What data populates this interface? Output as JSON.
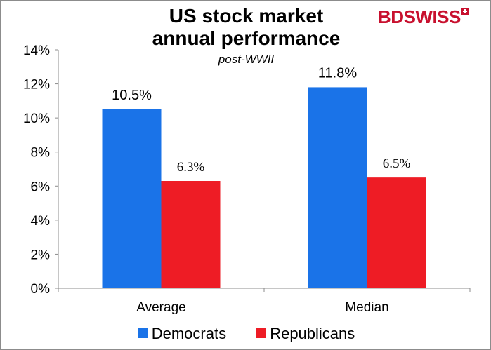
{
  "header": {
    "title_line1": "US stock market",
    "title_line2": "annual performance",
    "subtitle": "post-WWII"
  },
  "logo": {
    "part1": "BD",
    "part2": "SWISS"
  },
  "chart_data": {
    "type": "bar",
    "categories": [
      "Average",
      "Median"
    ],
    "series": [
      {
        "name": "Democrats",
        "values": [
          10.5,
          11.8
        ],
        "labels": [
          "10.5%",
          "11.8%"
        ],
        "color": "#1a73e8"
      },
      {
        "name": "Republicans",
        "values": [
          6.3,
          6.5
        ],
        "labels": [
          "6.3%",
          "6.5%"
        ],
        "color": "#ee1c25"
      }
    ],
    "ylim": [
      0,
      14
    ],
    "yticks": [
      0,
      2,
      4,
      6,
      8,
      10,
      12,
      14
    ],
    "ytick_labels": [
      "0%",
      "2%",
      "4%",
      "6%",
      "8%",
      "10%",
      "12%",
      "14%"
    ],
    "xlabel": "",
    "ylabel": "",
    "grid": false,
    "legend_position": "bottom"
  }
}
